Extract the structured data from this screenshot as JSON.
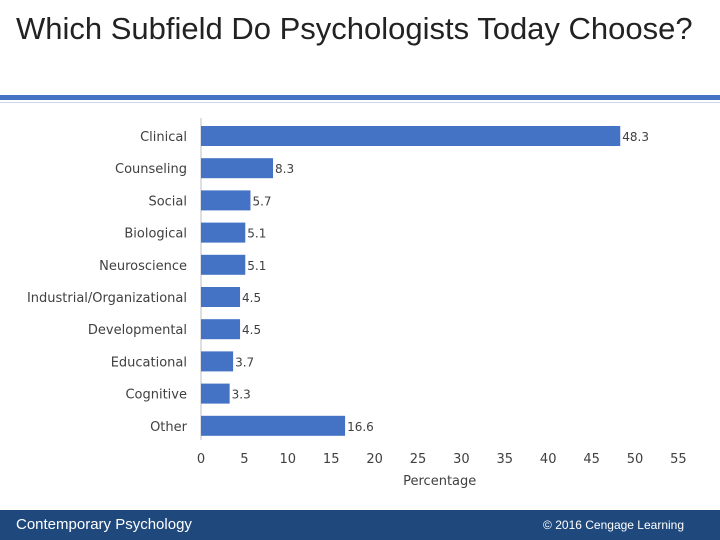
{
  "slide": {
    "title": "Which Subfield Do Psychologists Today Choose?",
    "footer_left": "Contemporary Psychology",
    "footer_right": "© 2016 Cengage Learning"
  },
  "colors": {
    "bar": "#4472c4",
    "accent_rule": "#4472c4",
    "footer": "#1f497d"
  },
  "chart_data": {
    "type": "bar",
    "orientation": "horizontal",
    "categories": [
      "Clinical",
      "Counseling",
      "Social",
      "Biological",
      "Neuroscience",
      "Industrial/Organizational",
      "Developmental",
      "Educational",
      "Cognitive",
      "Other"
    ],
    "values": [
      48.3,
      8.3,
      5.7,
      5.1,
      5.1,
      4.5,
      4.5,
      3.7,
      3.3,
      16.6
    ],
    "data_labels": [
      "48.3",
      "8.3",
      "5.7",
      "5.1",
      "5.1",
      "4.5",
      "4.5",
      "3.7",
      "3.3",
      "16.6"
    ],
    "xticks": [
      0,
      5,
      10,
      15,
      20,
      25,
      30,
      35,
      40,
      45,
      50,
      55
    ],
    "xlim": [
      0,
      55
    ],
    "xlabel": "Percentage",
    "ylabel": "",
    "title": "",
    "grid": false,
    "legend": "none"
  }
}
